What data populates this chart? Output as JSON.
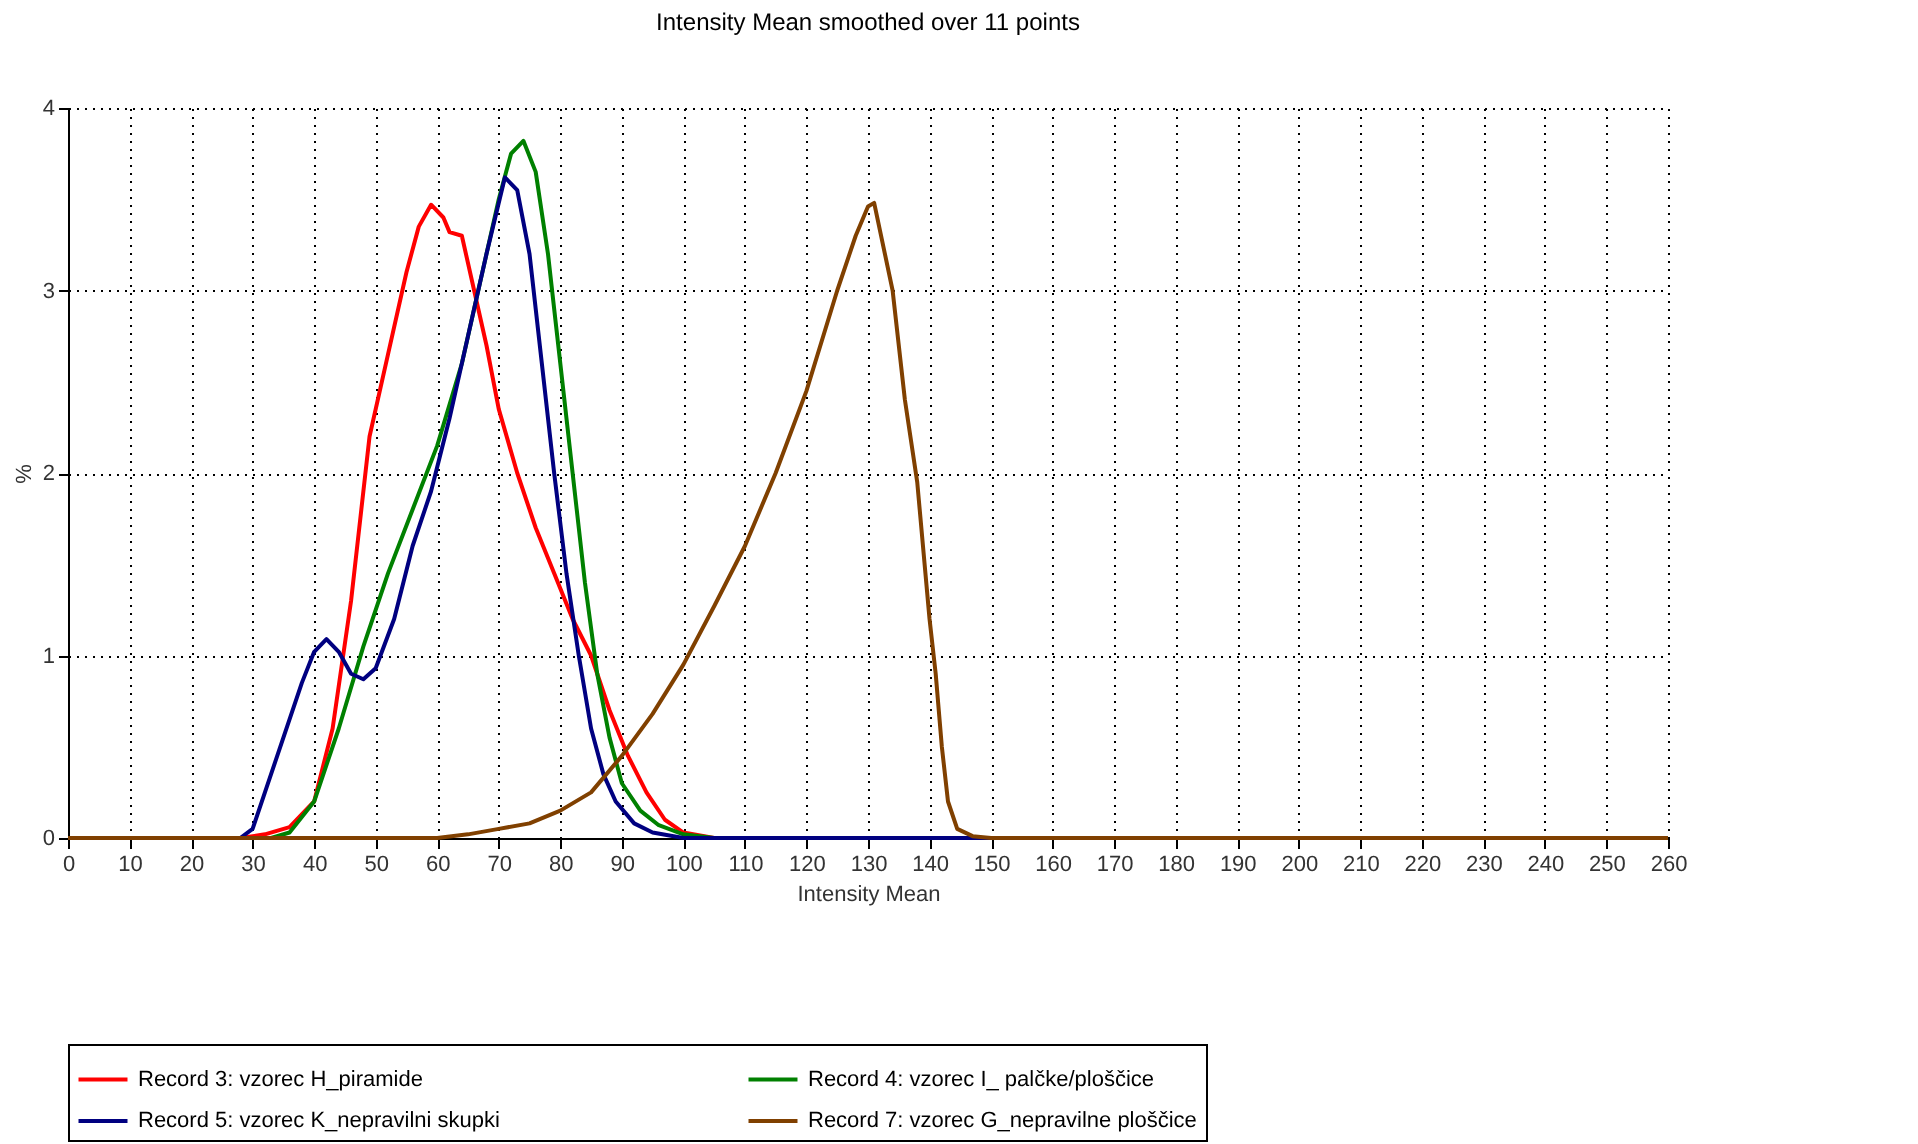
{
  "chart_data": {
    "type": "line",
    "title": "Intensity Mean smoothed over 11 points",
    "xlabel": "Intensity Mean",
    "ylabel": "%",
    "xlim": [
      0,
      260
    ],
    "xticks": [
      0,
      10,
      20,
      30,
      40,
      50,
      60,
      70,
      80,
      90,
      100,
      110,
      120,
      130,
      140,
      150,
      160,
      170,
      180,
      190,
      200,
      210,
      220,
      230,
      240,
      250,
      260
    ],
    "ylim": [
      0,
      4
    ],
    "yticks": [
      0,
      1,
      2,
      3,
      4
    ],
    "grid": true,
    "legend": "bottom",
    "marker": "none",
    "line_style": "solid",
    "series": [
      {
        "name": "Record 3: vzorec H_piramide",
        "color": "#ff0000",
        "x": [
          0,
          28,
          32,
          36,
          40,
          43,
          46,
          49,
          52,
          55,
          57,
          59,
          61,
          62,
          64,
          66,
          68,
          70,
          73,
          76,
          79,
          82,
          85,
          88,
          91,
          94,
          97,
          100,
          105,
          260
        ],
        "values": [
          0,
          0,
          0.02,
          0.06,
          0.2,
          0.6,
          1.3,
          2.2,
          2.65,
          3.1,
          3.35,
          3.47,
          3.4,
          3.32,
          3.3,
          3.0,
          2.7,
          2.35,
          2.0,
          1.7,
          1.45,
          1.2,
          1.0,
          0.7,
          0.45,
          0.25,
          0.1,
          0.03,
          0,
          0
        ]
      },
      {
        "name": "Record 4: vzorec I_ palčke/ploščice",
        "color": "#008000",
        "x": [
          0,
          33,
          36,
          40,
          44,
          48,
          52,
          56,
          60,
          64,
          67,
          70,
          72,
          74,
          76,
          78,
          80,
          82,
          84,
          86,
          88,
          90,
          93,
          96,
          100,
          105,
          260
        ],
        "values": [
          0,
          0,
          0.03,
          0.2,
          0.6,
          1.05,
          1.45,
          1.8,
          2.15,
          2.6,
          3.05,
          3.5,
          3.75,
          3.82,
          3.65,
          3.2,
          2.6,
          2.0,
          1.4,
          0.9,
          0.55,
          0.3,
          0.15,
          0.07,
          0.02,
          0,
          0
        ]
      },
      {
        "name": "Record 5: vzorec K_nepravilni skupki",
        "color": "#000080",
        "x": [
          0,
          28,
          30,
          32,
          35,
          38,
          40,
          42,
          44,
          46,
          48,
          50,
          53,
          56,
          59,
          62,
          65,
          68,
          71,
          73,
          75,
          77,
          79,
          81,
          83,
          85,
          87,
          89,
          92,
          95,
          100,
          260
        ],
        "values": [
          0,
          0,
          0.05,
          0.25,
          0.55,
          0.85,
          1.02,
          1.09,
          1.02,
          0.9,
          0.87,
          0.93,
          1.2,
          1.6,
          1.9,
          2.3,
          2.75,
          3.2,
          3.62,
          3.55,
          3.2,
          2.6,
          2.0,
          1.45,
          1.0,
          0.6,
          0.35,
          0.2,
          0.08,
          0.03,
          0,
          0
        ]
      },
      {
        "name": "Record 7: vzorec G_nepravilne ploščice",
        "color": "#804000",
        "x": [
          0,
          60,
          65,
          70,
          75,
          80,
          85,
          90,
          95,
          100,
          105,
          110,
          115,
          120,
          125,
          128,
          130,
          131,
          134,
          136,
          138,
          140,
          141,
          142,
          143,
          144.5,
          147,
          150,
          260
        ],
        "values": [
          0,
          0,
          0.02,
          0.05,
          0.08,
          0.15,
          0.25,
          0.45,
          0.68,
          0.95,
          1.27,
          1.6,
          2.0,
          2.45,
          3.0,
          3.3,
          3.46,
          3.48,
          3.0,
          2.4,
          1.95,
          1.2,
          0.9,
          0.5,
          0.2,
          0.05,
          0.01,
          0,
          0
        ]
      }
    ]
  }
}
